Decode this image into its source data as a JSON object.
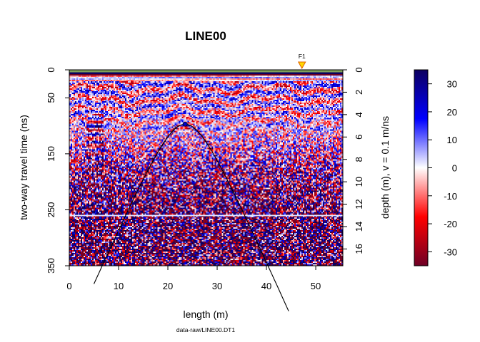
{
  "chart_data": {
    "type": "heatmap",
    "title": "LINE00",
    "xlabel": "length (m)",
    "ylabel": "two-way travel time (ns)",
    "y2label": "depth (m),  v = 0.1 m/ns",
    "footnote": "data-raw/LINE00.DT1",
    "xlim": [
      0,
      55.5
    ],
    "ylim": [
      350,
      0
    ],
    "y2lim": [
      17.5,
      0
    ],
    "x_ticks": [
      0,
      10,
      20,
      30,
      40,
      50
    ],
    "y_ticks": [
      0,
      50,
      150,
      250,
      350
    ],
    "y2_ticks": [
      0,
      2,
      4,
      6,
      8,
      10,
      12,
      14,
      16
    ],
    "colorbar": {
      "min": -35,
      "max": 35,
      "ticks": [
        30,
        20,
        10,
        0,
        -10,
        -20,
        -30
      ],
      "colors": [
        "#6e0025",
        "#ff0000",
        "#ffffff",
        "#0000ff",
        "#0d0060"
      ]
    },
    "fiducial": {
      "label": "F1",
      "x": 47.2
    },
    "hyperbola": {
      "apex_x": 23.5,
      "apex_t": 97,
      "velocity": 0.1,
      "x_range": [
        5,
        44.5
      ]
    },
    "colors": {
      "positive": "#0000ff",
      "negative": "#ff0000",
      "marker_fill": "#ffd700",
      "marker_stroke": "#e06000",
      "apex_point": "#0000cc"
    }
  }
}
